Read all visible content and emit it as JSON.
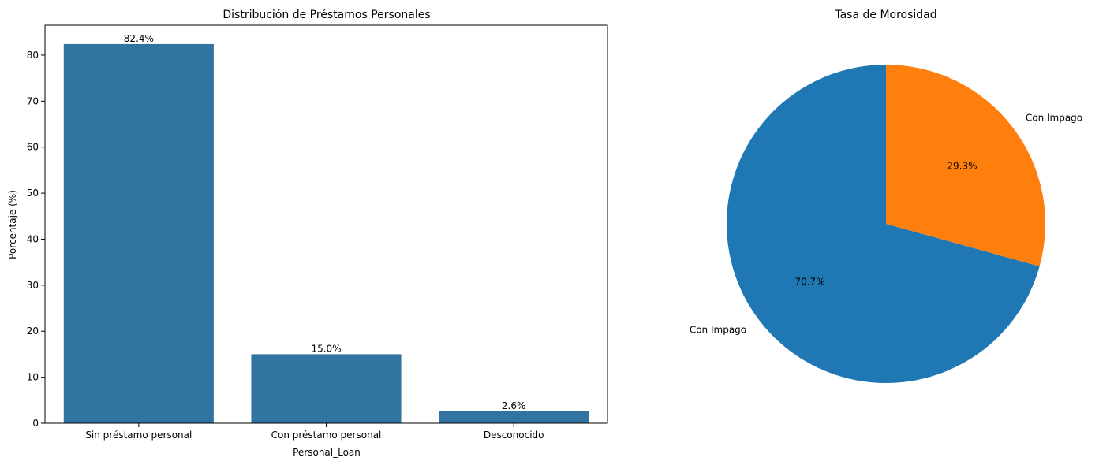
{
  "chart_data": [
    {
      "type": "bar",
      "title": "Distribución de Préstamos Personales",
      "xlabel": "Personal_Loan",
      "ylabel": "Porcentaje (%)",
      "categories": [
        "Sin préstamo personal",
        "Con préstamo personal",
        "Desconocido"
      ],
      "values": [
        82.4,
        15.0,
        2.6
      ],
      "data_labels": [
        "82.4%",
        "15.0%",
        "2.6%"
      ],
      "ylim": [
        0,
        86.5
      ],
      "yticks": [
        0,
        10,
        20,
        30,
        40,
        50,
        60,
        70,
        80
      ],
      "bar_color": "#3274a1",
      "grid": false
    },
    {
      "type": "pie",
      "title": "Tasa de Morosidad",
      "slices": [
        {
          "label": "Con Impago",
          "value": 70.7,
          "pct_label": "70.7%",
          "color": "#1f77b4"
        },
        {
          "label": "Con Impago",
          "value": 29.3,
          "pct_label": "29.3%",
          "color": "#ff7f0e"
        }
      ],
      "start_angle_deg": 90,
      "direction": "clockwise"
    }
  ]
}
